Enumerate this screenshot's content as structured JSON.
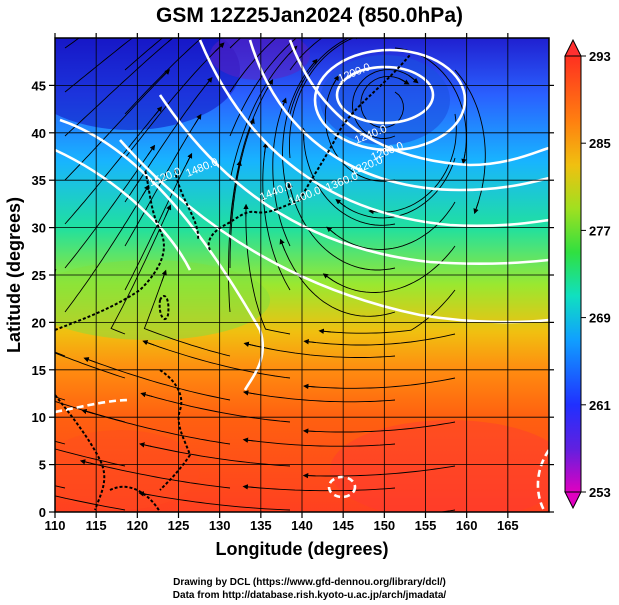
{
  "title": "GSM 12Z25Jan2024 (850.0hPa)",
  "credits": {
    "line1": "Drawing by DCL (https://www.gfd-dennou.org/library/dcl/)",
    "line2": "Data from http://database.rish.kyoto-u.ac.jp/arch/jmadata/"
  },
  "chart_data": {
    "type": "heatmap",
    "xlabel": "Longitude (degrees)",
    "ylabel": "Latitude (degrees)",
    "xlim": [
      110,
      170
    ],
    "ylim": [
      0,
      50
    ],
    "x_ticks": [
      "110",
      "115",
      "120",
      "125",
      "130",
      "135",
      "140",
      "145",
      "150",
      "155",
      "160",
      "165"
    ],
    "y_ticks": [
      "0",
      "5",
      "10",
      "15",
      "20",
      "25",
      "30",
      "35",
      "40",
      "45"
    ],
    "colorbar": {
      "ticks": [
        "253",
        "261",
        "269",
        "277",
        "285",
        "293"
      ],
      "range": [
        253,
        293
      ]
    },
    "contours": [
      {
        "label": "1200.0",
        "lon": 146.5,
        "lat": 46
      },
      {
        "label": "1240.0",
        "lon": 148.5,
        "lat": 39.5
      },
      {
        "label": "1260.0",
        "lon": 150.5,
        "lat": 37.7
      },
      {
        "label": "1320.0",
        "lon": 148.0,
        "lat": 36.2
      },
      {
        "label": "1360.0",
        "lon": 145.0,
        "lat": 34.5
      },
      {
        "label": "1400.0",
        "lon": 140.5,
        "lat": 33.0
      },
      {
        "label": "1440.0",
        "lon": 137.0,
        "lat": 33.5
      },
      {
        "label": "1480.0",
        "lon": 128.0,
        "lat": 36.0
      },
      {
        "label": "1520.0",
        "lon": 123.5,
        "lat": 35.0
      }
    ]
  }
}
